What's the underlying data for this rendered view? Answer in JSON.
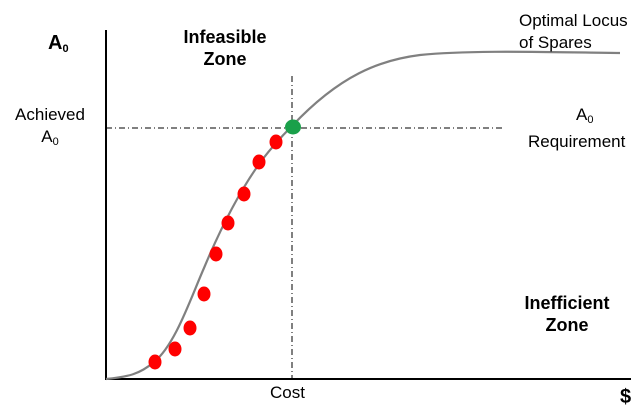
{
  "diagram": {
    "y_axis": {
      "symbol": "A",
      "subscript": "0"
    },
    "x_axis": {
      "symbol": "$"
    },
    "achieved": {
      "line1": "Achieved",
      "line2_symbol": "A",
      "line2_subscript": "0"
    },
    "requirement": {
      "symbol": "A",
      "subscript": "0",
      "line2": "Requirement"
    },
    "infeasible_zone": {
      "line1": "Infeasible",
      "line2": "Zone"
    },
    "inefficient_zone": {
      "line1": "Inefficient",
      "line2": "Zone"
    },
    "optimal_locus": {
      "line1": "Optimal Locus",
      "line2": "of Spares"
    },
    "cost_label": "Cost",
    "colors": {
      "curve": "#808080",
      "spare_points": "#ff0000",
      "optimal_point": "#1aa04a",
      "axes": "#000000",
      "reference_lines": "#000000"
    }
  }
}
